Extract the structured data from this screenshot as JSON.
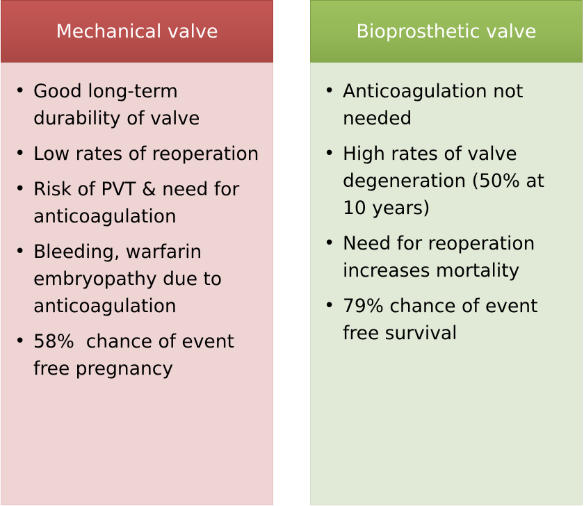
{
  "panels": [
    {
      "title": "Mechanical valve",
      "items": [
        "Good long-term durability of valve",
        "Low rates of reoperation",
        "Risk of PVT & need for anticoagulation",
        "Bleeding, warfarin embryopathy due to anticoagulation",
        "58%  chance of event free pregnancy"
      ],
      "colors": {
        "header": "#b9504d",
        "body": "#efd4d4"
      }
    },
    {
      "title": "Bioprosthetic valve",
      "items": [
        "Anticoagulation not needed",
        "High rates of valve degeneration (50% at 10 years)",
        "Need for reoperation increases mortality",
        "79% chance of event free survival"
      ],
      "colors": {
        "header": "#94b857",
        "body": "#e1ead7"
      }
    }
  ]
}
